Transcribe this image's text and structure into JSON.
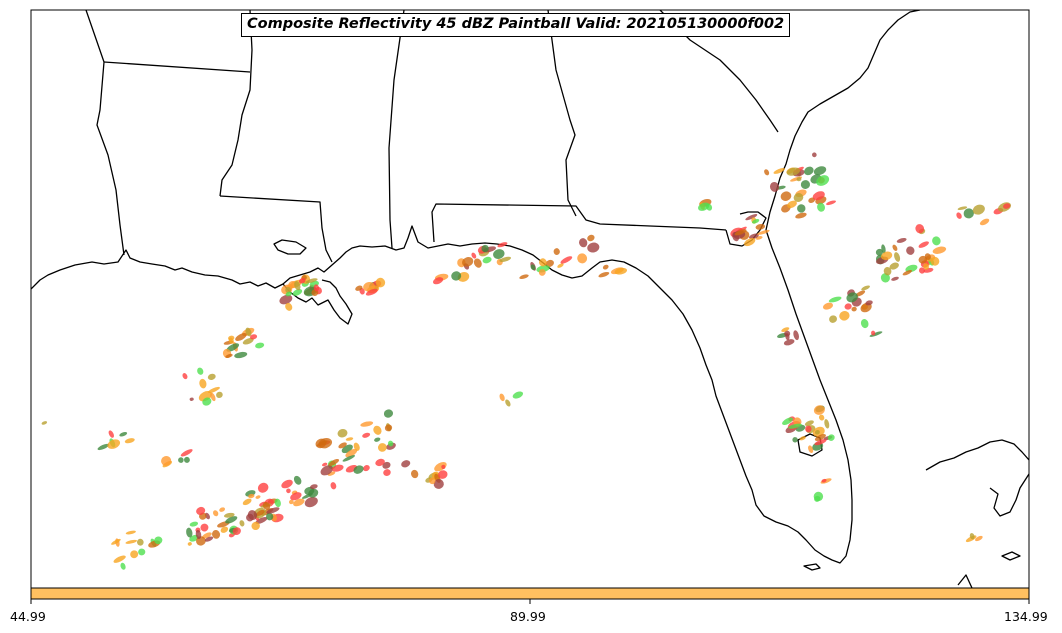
{
  "title": "Composite Reflectivity 45 dBZ Paintball Valid: 202105130000f002",
  "colorbar": {
    "color": "#ffc060",
    "ticks": [
      "44.99",
      "89.99",
      "134.99"
    ]
  },
  "colors": {
    "background": "#ffffff",
    "land_outline": "#000000",
    "paintball_palette": [
      "#ff4040",
      "#ff9a30",
      "#f7a520",
      "#b8a030",
      "#3f8a3f",
      "#4fe04f",
      "#a04040",
      "#d06a10"
    ]
  }
}
